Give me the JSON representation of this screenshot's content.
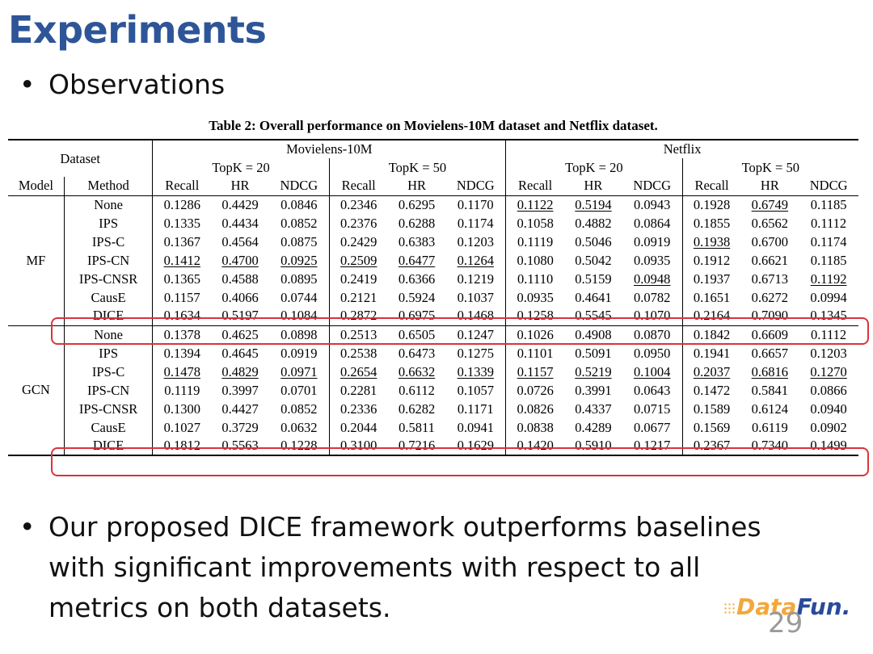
{
  "slide": {
    "title": "Experiments",
    "bullet1": "Observations",
    "conclusion_lines": [
      "Our proposed DICE framework outperforms baselines",
      "with significant improvements with respect to all",
      "metrics on both datasets."
    ],
    "page_number": "29",
    "logo_left": "Data",
    "logo_right": "Fun."
  },
  "table": {
    "caption": "Table 2: Overall performance on Movielens-10M dataset and Netflix dataset.",
    "dataset_label": "Dataset",
    "datasets": [
      "Movielens-10M",
      "Netflix"
    ],
    "topk": [
      "TopK = 20",
      "TopK = 50",
      "TopK = 20",
      "TopK = 50"
    ],
    "model_header": "Model",
    "method_header": "Method",
    "metrics": [
      "Recall",
      "HR",
      "NDCG",
      "Recall",
      "HR",
      "NDCG",
      "Recall",
      "HR",
      "NDCG",
      "Recall",
      "HR",
      "NDCG"
    ],
    "groups": [
      {
        "model": "MF",
        "rows": [
          {
            "method": "None",
            "values": [
              "0.1286",
              "0.4429",
              "0.0846",
              "0.2346",
              "0.6295",
              "0.1170",
              "0.1122",
              "0.5194",
              "0.0943",
              "0.1928",
              "0.6749",
              "0.1185"
            ],
            "underline": [
              6,
              7,
              10
            ]
          },
          {
            "method": "IPS",
            "values": [
              "0.1335",
              "0.4434",
              "0.0852",
              "0.2376",
              "0.6288",
              "0.1174",
              "0.1058",
              "0.4882",
              "0.0864",
              "0.1855",
              "0.6562",
              "0.1112"
            ],
            "underline": []
          },
          {
            "method": "IPS-C",
            "values": [
              "0.1367",
              "0.4564",
              "0.0875",
              "0.2429",
              "0.6383",
              "0.1203",
              "0.1119",
              "0.5046",
              "0.0919",
              "0.1938",
              "0.6700",
              "0.1174"
            ],
            "underline": [
              9
            ]
          },
          {
            "method": "IPS-CN",
            "values": [
              "0.1412",
              "0.4700",
              "0.0925",
              "0.2509",
              "0.6477",
              "0.1264",
              "0.1080",
              "0.5042",
              "0.0935",
              "0.1912",
              "0.6621",
              "0.1185"
            ],
            "underline": [
              0,
              1,
              2,
              3,
              4,
              5
            ]
          },
          {
            "method": "IPS-CNSR",
            "values": [
              "0.1365",
              "0.4588",
              "0.0895",
              "0.2419",
              "0.6366",
              "0.1219",
              "0.1110",
              "0.5159",
              "0.0948",
              "0.1937",
              "0.6713",
              "0.1192"
            ],
            "underline": [
              8,
              11
            ]
          },
          {
            "method": "CausE",
            "values": [
              "0.1157",
              "0.4066",
              "0.0744",
              "0.2121",
              "0.5924",
              "0.1037",
              "0.0935",
              "0.4641",
              "0.0782",
              "0.1651",
              "0.6272",
              "0.0994"
            ],
            "underline": []
          },
          {
            "method": "DICE",
            "values": [
              "0.1634",
              "0.5197",
              "0.1084",
              "0.2872",
              "0.6975",
              "0.1468",
              "0.1258",
              "0.5545",
              "0.1070",
              "0.2164",
              "0.7090",
              "0.1345"
            ],
            "underline": [],
            "bold": true
          }
        ]
      },
      {
        "model": "GCN",
        "rows": [
          {
            "method": "None",
            "values": [
              "0.1378",
              "0.4625",
              "0.0898",
              "0.2513",
              "0.6505",
              "0.1247",
              "0.1026",
              "0.4908",
              "0.0870",
              "0.1842",
              "0.6609",
              "0.1112"
            ],
            "underline": []
          },
          {
            "method": "IPS",
            "values": [
              "0.1394",
              "0.4645",
              "0.0919",
              "0.2538",
              "0.6473",
              "0.1275",
              "0.1101",
              "0.5091",
              "0.0950",
              "0.1941",
              "0.6657",
              "0.1203"
            ],
            "underline": []
          },
          {
            "method": "IPS-C",
            "values": [
              "0.1478",
              "0.4829",
              "0.0971",
              "0.2654",
              "0.6632",
              "0.1339",
              "0.1157",
              "0.5219",
              "0.1004",
              "0.2037",
              "0.6816",
              "0.1270"
            ],
            "underline": [
              0,
              1,
              2,
              3,
              4,
              5,
              6,
              7,
              8,
              9,
              10,
              11
            ]
          },
          {
            "method": "IPS-CN",
            "values": [
              "0.1119",
              "0.3997",
              "0.0701",
              "0.2281",
              "0.6112",
              "0.1057",
              "0.0726",
              "0.3991",
              "0.0643",
              "0.1472",
              "0.5841",
              "0.0866"
            ],
            "underline": []
          },
          {
            "method": "IPS-CNSR",
            "values": [
              "0.1300",
              "0.4427",
              "0.0852",
              "0.2336",
              "0.6282",
              "0.1171",
              "0.0826",
              "0.4337",
              "0.0715",
              "0.1589",
              "0.6124",
              "0.0940"
            ],
            "underline": []
          },
          {
            "method": "CausE",
            "values": [
              "0.1027",
              "0.3729",
              "0.0632",
              "0.2044",
              "0.5811",
              "0.0941",
              "0.0838",
              "0.4289",
              "0.0677",
              "0.1569",
              "0.6119",
              "0.0902"
            ],
            "underline": []
          },
          {
            "method": "DICE",
            "values": [
              "0.1812",
              "0.5563",
              "0.1228",
              "0.3100",
              "0.7216",
              "0.1629",
              "0.1420",
              "0.5910",
              "0.1217",
              "0.2367",
              "0.7340",
              "0.1499"
            ],
            "underline": [],
            "bold": true
          }
        ]
      }
    ]
  }
}
